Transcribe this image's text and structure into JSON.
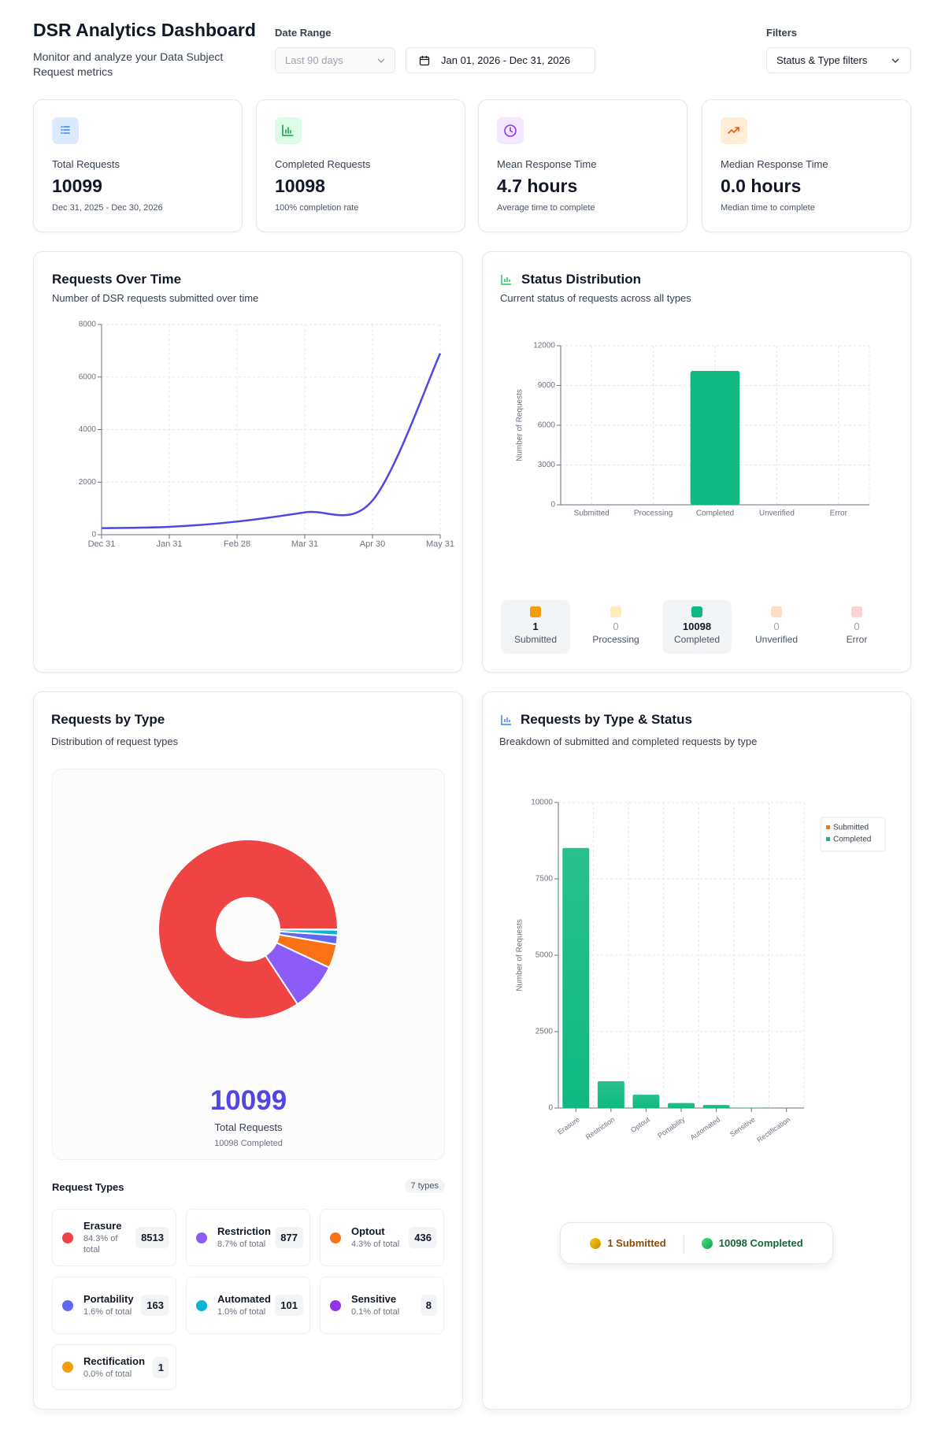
{
  "header": {
    "title": "DSR Analytics Dashboard",
    "subtitle": "Monitor and analyze your Data Subject Request metrics",
    "date_range_label": "Date Range",
    "preset": "Last 90 days",
    "range": "Jan 01, 2026 - Dec 31, 2026",
    "filters_label": "Filters",
    "filters": "Status & Type filters"
  },
  "stats": [
    {
      "label": "Total Requests",
      "value": "10099",
      "note": "Dec 31, 2025 - Dec 30, 2026"
    },
    {
      "label": "Completed Requests",
      "value": "10098",
      "note": "100% completion rate"
    },
    {
      "label": "Mean Response Time",
      "value": "4.7 hours",
      "note": "Average time to complete"
    },
    {
      "label": "Median Response Time",
      "value": "0.0 hours",
      "note": "Median time to complete"
    }
  ],
  "chart_data": [
    {
      "type": "line",
      "title": "Requests Over Time",
      "subtitle": "Number of DSR requests submitted over time",
      "categories": [
        "Dec 31",
        "Jan 31",
        "Feb 28",
        "Mar 31",
        "Apr 30",
        "May 31"
      ],
      "values": [
        250,
        300,
        500,
        850,
        1300,
        6900
      ],
      "color": "#4f46e5",
      "ylim": [
        0,
        8000
      ],
      "yticks": [
        0,
        2000,
        4000,
        6000,
        8000
      ],
      "grid": true
    },
    {
      "type": "bar",
      "title": "Status Distribution",
      "subtitle": "Current status of requests across all types",
      "y_label": "Number of Requests",
      "categories": [
        "Submitted",
        "Processing",
        "Completed",
        "Unverified",
        "Error"
      ],
      "values": [
        1,
        0,
        10098,
        0,
        0
      ],
      "colors": [
        "#f59e0b",
        "#fbbf24",
        "#10b981",
        "#fb923c",
        "#f87171"
      ],
      "ylim": [
        0,
        12000
      ],
      "yticks": [
        0,
        3000,
        6000,
        9000,
        12000
      ],
      "grid": true
    },
    {
      "type": "donut",
      "title": "Requests by Type",
      "subtitle": "Distribution of request types",
      "categories": [
        "Erasure",
        "Restriction",
        "Optout",
        "Portability",
        "Automated",
        "Sensitive",
        "Rectification"
      ],
      "values": [
        8513,
        877,
        436,
        163,
        101,
        8,
        1
      ],
      "shares": [
        "84.3% of total",
        "8.7% of total",
        "4.3% of total",
        "1.6% of total",
        "1.0% of total",
        "0.1% of total",
        "0.0% of total"
      ],
      "colors": [
        "#ef4444",
        "#8b5cf6",
        "#f97316",
        "#6366f1",
        "#06b6d4",
        "#9333ea",
        "#f59e0b"
      ],
      "total": 10099,
      "total_label": "Total Requests",
      "completed_note": "10098 Completed",
      "list_title": "Request Types",
      "count_label": "7 types"
    },
    {
      "type": "stacked_bar",
      "title": "Requests by Type & Status",
      "subtitle": "Breakdown of submitted and completed requests by type",
      "y_label": "Number of Requests",
      "categories": [
        "Erasure",
        "Restriction",
        "Optout",
        "Portability",
        "Automated",
        "Sensitive",
        "Rectification"
      ],
      "series": [
        {
          "name": "Submitted",
          "color": "#f97316",
          "values": [
            0,
            0,
            0,
            0,
            0,
            0,
            1
          ]
        },
        {
          "name": "Completed",
          "color": "#10b981",
          "values": [
            8513,
            877,
            436,
            163,
            101,
            8,
            0
          ]
        }
      ],
      "ylim": [
        0,
        10000
      ],
      "yticks": [
        0,
        2500,
        5000,
        7500,
        10000
      ],
      "grid": true,
      "legend": "top-right",
      "summary": [
        "1 Submitted",
        "10098 Completed"
      ]
    }
  ]
}
